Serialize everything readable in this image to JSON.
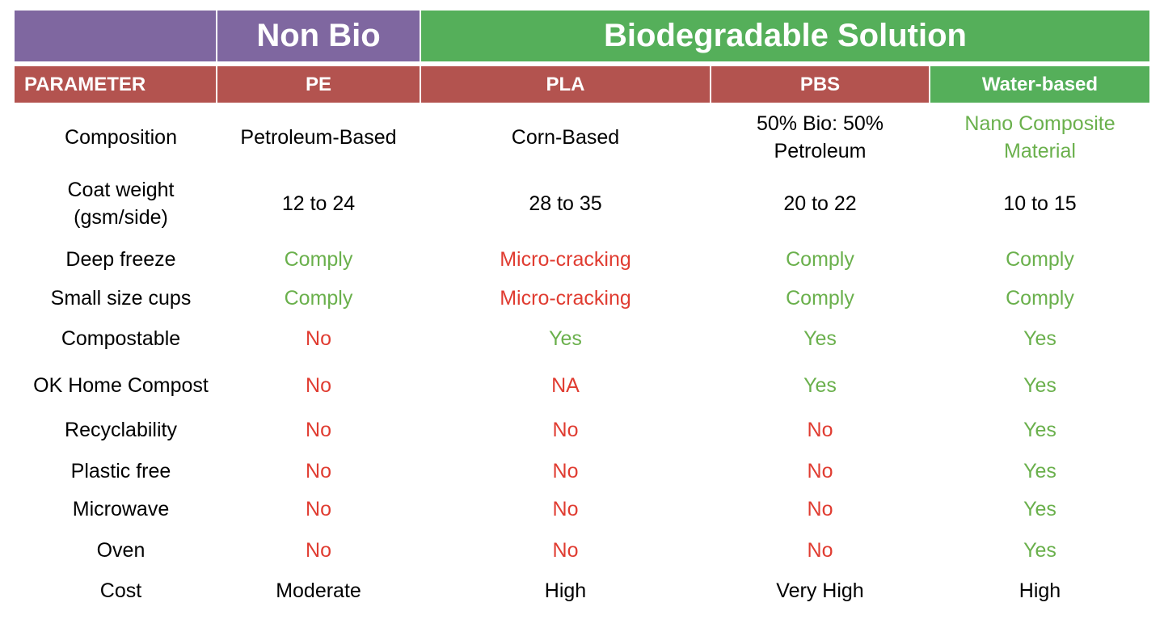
{
  "header": {
    "non_bio": "Non Bio",
    "biodegradable": "Biodegradable Solution"
  },
  "table": {
    "columns": [
      "PARAMETER",
      "PE",
      "PLA",
      "PBS",
      "Water-based"
    ],
    "rows": [
      {
        "parameter": "Composition",
        "values": [
          {
            "text": "Petroleum-Based",
            "color": "#000000"
          },
          {
            "text": "Corn-Based",
            "color": "#000000"
          },
          {
            "text": "50% Bio: 50%\nPetroleum",
            "color": "#000000"
          },
          {
            "text": "Nano Composite\nMaterial",
            "color": "#6ab04c"
          }
        ]
      },
      {
        "parameter": "Coat weight\n(gsm/side)",
        "values": [
          {
            "text": "12 to 24",
            "color": "#000000"
          },
          {
            "text": "28 to 35",
            "color": "#000000"
          },
          {
            "text": "20 to 22",
            "color": "#000000"
          },
          {
            "text": "10 to 15",
            "color": "#000000"
          }
        ]
      },
      {
        "parameter": "Deep freeze",
        "values": [
          {
            "text": "Comply",
            "color": "#6ab04c"
          },
          {
            "text": "Micro-cracking",
            "color": "#e03c31"
          },
          {
            "text": "Comply",
            "color": "#6ab04c"
          },
          {
            "text": "Comply",
            "color": "#6ab04c"
          }
        ]
      },
      {
        "parameter": "Small size cups",
        "values": [
          {
            "text": "Comply",
            "color": "#6ab04c"
          },
          {
            "text": "Micro-cracking",
            "color": "#e03c31"
          },
          {
            "text": "Comply",
            "color": "#6ab04c"
          },
          {
            "text": "Comply",
            "color": "#6ab04c"
          }
        ]
      },
      {
        "parameter": "Compostable",
        "values": [
          {
            "text": "No",
            "color": "#e03c31"
          },
          {
            "text": "Yes",
            "color": "#6ab04c"
          },
          {
            "text": "Yes",
            "color": "#6ab04c"
          },
          {
            "text": "Yes",
            "color": "#6ab04c"
          }
        ]
      },
      {
        "parameter": "OK Home Compost",
        "values": [
          {
            "text": "No",
            "color": "#e03c31"
          },
          {
            "text": "NA",
            "color": "#e03c31"
          },
          {
            "text": "Yes",
            "color": "#6ab04c"
          },
          {
            "text": "Yes",
            "color": "#6ab04c"
          }
        ]
      },
      {
        "parameter": "Recyclability",
        "values": [
          {
            "text": "No",
            "color": "#e03c31"
          },
          {
            "text": "No",
            "color": "#e03c31"
          },
          {
            "text": "No",
            "color": "#e03c31"
          },
          {
            "text": "Yes",
            "color": "#6ab04c"
          }
        ]
      },
      {
        "parameter": "Plastic free",
        "values": [
          {
            "text": "No",
            "color": "#e03c31"
          },
          {
            "text": "No",
            "color": "#e03c31"
          },
          {
            "text": "No",
            "color": "#e03c31"
          },
          {
            "text": "Yes",
            "color": "#6ab04c"
          }
        ]
      },
      {
        "parameter": "Microwave",
        "values": [
          {
            "text": "No",
            "color": "#e03c31"
          },
          {
            "text": "No",
            "color": "#e03c31"
          },
          {
            "text": "No",
            "color": "#e03c31"
          },
          {
            "text": "Yes",
            "color": "#6ab04c"
          }
        ]
      },
      {
        "parameter": "Oven",
        "values": [
          {
            "text": "No",
            "color": "#e03c31"
          },
          {
            "text": "No",
            "color": "#e03c31"
          },
          {
            "text": "No",
            "color": "#e03c31"
          },
          {
            "text": "Yes",
            "color": "#6ab04c"
          }
        ]
      },
      {
        "parameter": "Cost",
        "values": [
          {
            "text": "Moderate",
            "color": "#000000"
          },
          {
            "text": "High",
            "color": "#000000"
          },
          {
            "text": "Very High",
            "color": "#000000"
          },
          {
            "text": "High",
            "color": "#000000"
          }
        ]
      }
    ]
  }
}
